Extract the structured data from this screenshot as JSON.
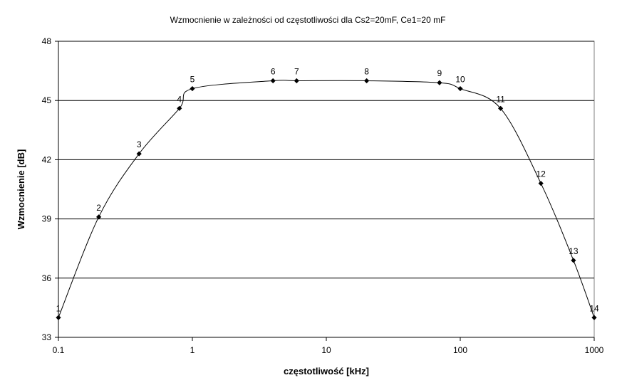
{
  "chart_data": {
    "type": "line",
    "title": "Wzmocnienie w zależności od częstotliwości dla Cs2=20mF, Ce1=20 mF",
    "xlabel": "częstotliwość [kHz]",
    "ylabel": "Wzmocnienie [dB]",
    "x_scale": "log",
    "xlim": [
      0.1,
      1000
    ],
    "ylim": [
      33,
      48
    ],
    "x_ticks": [
      "0.1",
      "1",
      "10",
      "100",
      "1000"
    ],
    "y_ticks": [
      "33",
      "36",
      "39",
      "42",
      "45",
      "48"
    ],
    "grid": "horizontal",
    "legend": "none",
    "colors": {
      "line": "#000000",
      "marker": "#000000",
      "grid": "#000000",
      "plot_bg": "#ffffff"
    },
    "series": [
      {
        "x": [
          0.1,
          0.2,
          0.4,
          0.8,
          1,
          4,
          6,
          20,
          70,
          100,
          200,
          400,
          700,
          1000
        ],
        "y": [
          34.0,
          39.1,
          42.3,
          44.6,
          45.6,
          46.0,
          46.0,
          46.0,
          45.9,
          45.6,
          44.6,
          40.8,
          36.9,
          34.0
        ],
        "labels": [
          "1",
          "2",
          "3",
          "4",
          "5",
          "6",
          "7",
          "8",
          "9",
          "10",
          "11",
          "12",
          "13",
          "14"
        ]
      }
    ]
  }
}
